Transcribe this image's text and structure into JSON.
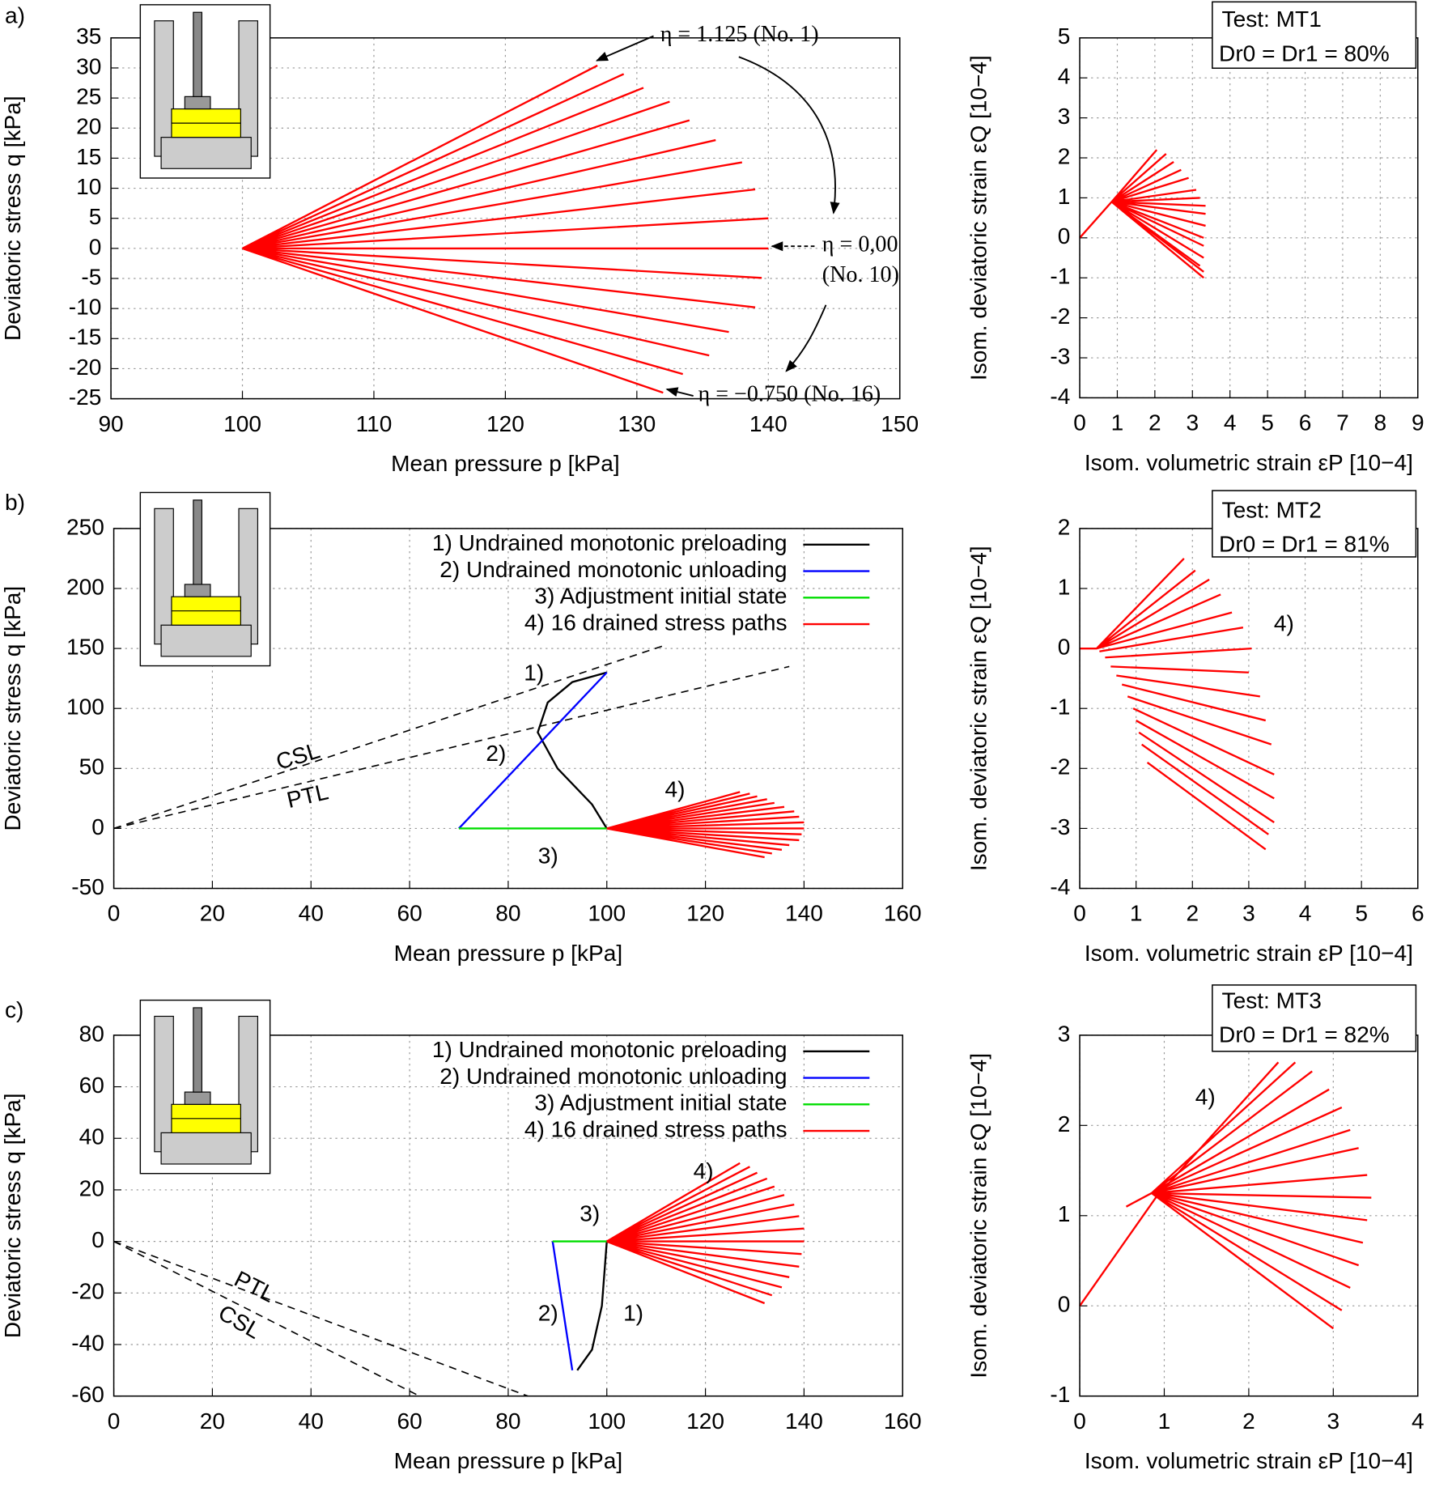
{
  "chart_data": [
    {
      "type": "line",
      "label": "a)",
      "xlabel": "Mean pressure p [kPa]",
      "ylabel": "Deviatoric stress q [kPa]",
      "xlim": [
        90,
        150
      ],
      "xticks": [
        90,
        100,
        110,
        120,
        130,
        140,
        150
      ],
      "ylim": [
        -25,
        35
      ],
      "yticks": [
        -25,
        -20,
        -15,
        -10,
        -5,
        0,
        5,
        10,
        15,
        20,
        25,
        30,
        35
      ],
      "grid": true,
      "series": [
        {
          "color": "#ff0000",
          "x": [
            100,
            127,
            null,
            100,
            129,
            null,
            100,
            130.5,
            null,
            100,
            132.5,
            null,
            100,
            134,
            null,
            100,
            136,
            null,
            100,
            138,
            null,
            100,
            139,
            null,
            100,
            140,
            null,
            100,
            140,
            null,
            100,
            139.5,
            null,
            100,
            139,
            null,
            100,
            137,
            null,
            100,
            135.5,
            null,
            100,
            133.5,
            null,
            100,
            132
          ],
          "values": [
            0,
            30.4,
            null,
            0,
            29,
            null,
            0,
            26.7,
            null,
            0,
            24.4,
            null,
            0,
            21.3,
            null,
            0,
            18,
            null,
            0,
            14.3,
            null,
            0,
            9.8,
            null,
            0,
            5,
            null,
            0,
            0,
            null,
            0,
            -4.9,
            null,
            0,
            -9.8,
            null,
            0,
            -13.9,
            null,
            0,
            -17.8,
            null,
            0,
            -20.9,
            null,
            0,
            -24
          ]
        }
      ],
      "annotations": [
        "η = 1.125 (No. 1)",
        "η = 0,00",
        "(No. 10)",
        "η = −0.750 (No. 16)"
      ]
    },
    {
      "type": "line",
      "xlabel": "Isom. volumetric strain εP [10−4]",
      "ylabel": "Isom. deviatoric strain εQ [10−4]",
      "xlim": [
        0,
        9
      ],
      "xticks": [
        0,
        1,
        2,
        3,
        4,
        5,
        6,
        7,
        8,
        9
      ],
      "ylim": [
        -4,
        5
      ],
      "yticks": [
        -4,
        -3,
        -2,
        -1,
        0,
        1,
        2,
        3,
        4,
        5
      ],
      "grid": true,
      "series": [
        {
          "color": "#ff0000",
          "x": [
            0,
            0.85,
            2.05,
            null,
            0.85,
            2.3,
            null,
            0.85,
            2.5,
            null,
            0.85,
            2.7,
            null,
            0.85,
            2.9,
            null,
            0.85,
            3.1,
            null,
            0.85,
            3.2,
            null,
            0.85,
            3.35,
            null,
            0.85,
            3.35,
            null,
            0.85,
            3.35,
            null,
            0.85,
            3.3,
            null,
            0.85,
            3.3,
            null,
            0.85,
            3.3,
            null,
            0.85,
            3.2,
            null,
            0.85,
            3.3,
            null,
            0.85,
            3.3
          ],
          "values": [
            0,
            0.9,
            2.2,
            null,
            0.9,
            2.1,
            null,
            0.9,
            1.9,
            null,
            0.9,
            1.7,
            null,
            0.9,
            1.5,
            null,
            0.9,
            1.2,
            null,
            0.9,
            1.0,
            null,
            0.9,
            0.8,
            null,
            0.9,
            0.6,
            null,
            0.9,
            0.3,
            null,
            0.9,
            0.0,
            null,
            0.9,
            -0.2,
            null,
            0.9,
            -0.5,
            null,
            0.9,
            -0.7,
            null,
            0.9,
            -0.85,
            null,
            0.9,
            -1.0
          ]
        }
      ],
      "annotations": [
        "Test: MT1",
        "Dr0 = Dr1 = 80%"
      ]
    },
    {
      "type": "line",
      "label": "b)",
      "xlabel": "Mean pressure p [kPa]",
      "ylabel": "Deviatoric stress q [kPa]",
      "xlim": [
        0,
        160
      ],
      "xticks": [
        0,
        20,
        40,
        60,
        80,
        100,
        120,
        140,
        160
      ],
      "ylim": [
        -50,
        250
      ],
      "yticks": [
        -50,
        0,
        50,
        100,
        150,
        200,
        250
      ],
      "grid": true,
      "series": [
        {
          "name": "1) Undrained monotonic preloading",
          "color": "#000000",
          "x": [
            100,
            97,
            90,
            86,
            88,
            93,
            100
          ],
          "values": [
            0,
            20,
            50,
            80,
            105,
            122,
            130
          ]
        },
        {
          "name": "2) Undrained monotonic unloading",
          "color": "#0000ff",
          "x": [
            100,
            70
          ],
          "values": [
            130,
            0
          ]
        },
        {
          "name": "3) Adjustment initial state",
          "color": "#00dd00",
          "x": [
            70,
            100
          ],
          "values": [
            0,
            0
          ]
        },
        {
          "name": "4) 16 drained stress paths",
          "color": "#ff0000",
          "x": [
            100,
            127,
            null,
            100,
            129,
            null,
            100,
            130.5,
            null,
            100,
            132.5,
            null,
            100,
            134,
            null,
            100,
            136,
            null,
            100,
            138,
            null,
            100,
            139,
            null,
            100,
            140,
            null,
            100,
            140,
            null,
            100,
            139.5,
            null,
            100,
            139,
            null,
            100,
            137,
            null,
            100,
            135.5,
            null,
            100,
            133.5,
            null,
            100,
            132
          ],
          "values": [
            0,
            30.4,
            null,
            0,
            29,
            null,
            0,
            26.7,
            null,
            0,
            24.4,
            null,
            0,
            21.3,
            null,
            0,
            18,
            null,
            0,
            14.3,
            null,
            0,
            9.8,
            null,
            0,
            5,
            null,
            0,
            0,
            null,
            0,
            -4.9,
            null,
            0,
            -9.8,
            null,
            0,
            -13.9,
            null,
            0,
            -17.8,
            null,
            0,
            -20.9,
            null,
            0,
            -24
          ]
        },
        {
          "color": "#000000",
          "dash": true,
          "x": [
            0,
            112
          ],
          "values": [
            0,
            153
          ]
        },
        {
          "color": "#000000",
          "dash": true,
          "x": [
            0,
            137
          ],
          "values": [
            0,
            135
          ]
        }
      ],
      "annotations": [
        "CSL",
        "PTL",
        "1)",
        "2)",
        "3)",
        "4)"
      ]
    },
    {
      "type": "line",
      "xlabel": "Isom. volumetric strain εP [10−4]",
      "ylabel": "Isom. deviatoric strain εQ [10−4]",
      "xlim": [
        0,
        6
      ],
      "xticks": [
        0,
        1,
        2,
        3,
        4,
        5,
        6
      ],
      "ylim": [
        -4,
        2
      ],
      "yticks": [
        -4,
        -3,
        -2,
        -1,
        0,
        1,
        2
      ],
      "grid": true,
      "series": [
        {
          "color": "#ff0000",
          "x": [
            0,
            0.3,
            1.85,
            null,
            0.3,
            2.05,
            null,
            0.3,
            2.3,
            null,
            0.3,
            2.5,
            null,
            0.3,
            2.7,
            null,
            0.35,
            2.9,
            null,
            0.45,
            3.05,
            null,
            0.55,
            3.0,
            null,
            0.65,
            3.2,
            null,
            0.75,
            3.3,
            null,
            0.85,
            3.4,
            null,
            0.95,
            3.45,
            null,
            1.0,
            3.45,
            null,
            1.05,
            3.45,
            null,
            1.1,
            3.35,
            null,
            1.2,
            3.3
          ],
          "values": [
            0,
            0,
            1.5,
            null,
            0,
            1.3,
            null,
            0,
            1.15,
            null,
            0,
            0.9,
            null,
            0,
            0.6,
            null,
            -0.05,
            0.35,
            null,
            -0.15,
            0.0,
            null,
            -0.3,
            -0.4,
            null,
            -0.45,
            -0.8,
            null,
            -0.6,
            -1.2,
            null,
            -0.8,
            -1.6,
            null,
            -1.0,
            -2.1,
            null,
            -1.2,
            -2.5,
            null,
            -1.4,
            -2.9,
            null,
            -1.6,
            -3.1,
            null,
            -1.9,
            -3.35
          ]
        }
      ],
      "annotations": [
        "Test: MT2",
        "Dr0 = Dr1 = 81%",
        "4)"
      ]
    },
    {
      "type": "line",
      "label": "c)",
      "xlabel": "Mean pressure p [kPa]",
      "ylabel": "Deviatoric stress q [kPa]",
      "xlim": [
        0,
        160
      ],
      "xticks": [
        0,
        20,
        40,
        60,
        80,
        100,
        120,
        140,
        160
      ],
      "ylim": [
        -60,
        80
      ],
      "yticks": [
        -60,
        -40,
        -20,
        0,
        20,
        40,
        60,
        80
      ],
      "grid": true,
      "series": [
        {
          "name": "1) Undrained monotonic preloading",
          "color": "#000000",
          "x": [
            100,
            99,
            97,
            94
          ],
          "values": [
            0,
            -25,
            -42,
            -50
          ]
        },
        {
          "name": "2) Undrained monotonic unloading",
          "color": "#0000ff",
          "x": [
            93,
            89
          ],
          "values": [
            -50,
            0
          ]
        },
        {
          "name": "3) Adjustment initial state",
          "color": "#00dd00",
          "x": [
            89,
            100
          ],
          "values": [
            0,
            0
          ]
        },
        {
          "name": "4) 16 drained stress paths",
          "color": "#ff0000",
          "x": [
            100,
            127,
            null,
            100,
            129,
            null,
            100,
            130.5,
            null,
            100,
            132.5,
            null,
            100,
            134,
            null,
            100,
            136,
            null,
            100,
            138,
            null,
            100,
            139,
            null,
            100,
            140,
            null,
            100,
            140,
            null,
            100,
            139.5,
            null,
            100,
            139,
            null,
            100,
            137,
            null,
            100,
            135.5,
            null,
            100,
            133.5,
            null,
            100,
            132
          ],
          "values": [
            0,
            30.4,
            null,
            0,
            29,
            null,
            0,
            26.7,
            null,
            0,
            24.4,
            null,
            0,
            21.3,
            null,
            0,
            18,
            null,
            0,
            14.3,
            null,
            0,
            9.8,
            null,
            0,
            5,
            null,
            0,
            0,
            null,
            0,
            -4.9,
            null,
            0,
            -9.8,
            null,
            0,
            -13.9,
            null,
            0,
            -17.8,
            null,
            0,
            -20.9,
            null,
            0,
            -24
          ]
        },
        {
          "color": "#000000",
          "dash": true,
          "x": [
            0,
            84
          ],
          "values": [
            0,
            -60
          ]
        },
        {
          "color": "#000000",
          "dash": true,
          "x": [
            0,
            62
          ],
          "values": [
            0,
            -60
          ]
        }
      ],
      "annotations": [
        "PTL",
        "CSL",
        "3)",
        "2)",
        "1)",
        "4)"
      ]
    },
    {
      "type": "line",
      "xlabel": "Isom. volumetric strain εP [10−4]",
      "ylabel": "Isom. deviatoric strain εQ [10−4]",
      "xlim": [
        0,
        4
      ],
      "xticks": [
        0,
        1,
        2,
        3,
        4
      ],
      "ylim": [
        -1,
        3
      ],
      "yticks": [
        -1,
        0,
        1,
        2,
        3
      ],
      "grid": true,
      "series": [
        {
          "color": "#ff0000",
          "x": [
            0,
            0.9,
            2.35,
            null,
            0.85,
            2.55,
            null,
            0.85,
            2.75,
            null,
            0.85,
            2.95,
            null,
            0.85,
            3.1,
            null,
            0.85,
            3.2,
            null,
            0.85,
            3.3,
            null,
            0.85,
            3.4,
            null,
            0.85,
            3.45,
            null,
            0.85,
            3.4,
            null,
            0.85,
            3.35,
            null,
            0.85,
            3.3,
            null,
            0.85,
            3.2,
            null,
            0.85,
            3.1,
            null,
            0.85,
            3.0,
            null,
            0.85,
            0.55
          ],
          "values": [
            0,
            1.2,
            2.7,
            null,
            1.25,
            2.7,
            null,
            1.25,
            2.6,
            null,
            1.25,
            2.4,
            null,
            1.25,
            2.2,
            null,
            1.25,
            1.95,
            null,
            1.25,
            1.75,
            null,
            1.25,
            1.45,
            null,
            1.25,
            1.2,
            null,
            1.25,
            0.95,
            null,
            1.25,
            0.7,
            null,
            1.25,
            0.45,
            null,
            1.25,
            0.2,
            null,
            1.25,
            -0.05,
            null,
            1.25,
            -0.25,
            null,
            1.25,
            1.1
          ]
        }
      ],
      "annotations": [
        "Test: MT3",
        "Dr0 = Dr1 = 82%",
        "4)"
      ]
    }
  ]
}
